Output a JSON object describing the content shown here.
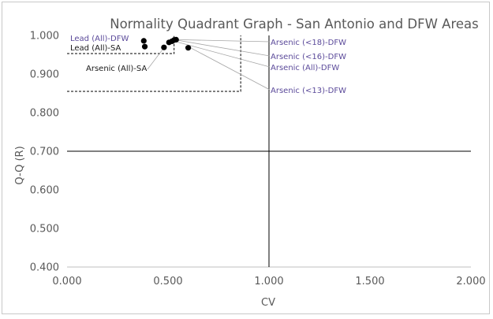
{
  "chart_data": {
    "type": "scatter",
    "title": "Normality Quadrant Graph - San Antonio and DFW Areas",
    "xlabel": "CV",
    "ylabel": "Q-Q (R)",
    "xlim": [
      0.0,
      2.0
    ],
    "ylim": [
      0.4,
      1.0
    ],
    "x_ticks": [
      "0.000",
      "0.500",
      "1.000",
      "1.500",
      "2.000"
    ],
    "y_ticks": [
      "0.400",
      "0.500",
      "0.600",
      "0.700",
      "0.800",
      "0.900",
      "1.000"
    ],
    "reference_lines": {
      "x": 1.0,
      "y": 0.7
    },
    "highlight_box": {
      "x_range": [
        0.0,
        0.86
      ],
      "y_range": [
        0.855,
        1.0
      ],
      "style": "dashed"
    },
    "inner_box": {
      "x_range": [
        0.0,
        0.53
      ],
      "y_range": [
        0.953,
        1.0
      ],
      "style": "dashed"
    },
    "marker_color": "#000000",
    "points": [
      {
        "x": 0.38,
        "y": 0.986
      },
      {
        "x": 0.385,
        "y": 0.971
      },
      {
        "x": 0.48,
        "y": 0.969
      },
      {
        "x": 0.505,
        "y": 0.982
      },
      {
        "x": 0.52,
        "y": 0.985
      },
      {
        "x": 0.53,
        "y": 0.988
      },
      {
        "x": 0.54,
        "y": 0.989
      },
      {
        "x": 0.6,
        "y": 0.968
      }
    ],
    "annotations": [
      {
        "text": "Lead (All)-DFW",
        "color": "#5b4a9a",
        "side": "left",
        "x": 0.38,
        "y": 0.986
      },
      {
        "text": "Lead (All)-SA",
        "color": "#1a1a1a",
        "side": "left",
        "x": 0.385,
        "y": 0.971
      },
      {
        "text": "Arsenic (All)-SA",
        "color": "#1a1a1a",
        "side": "left",
        "x": 0.48,
        "y": 0.969
      },
      {
        "text": "Arsenic (<18)-DFW",
        "color": "#5b4a9a",
        "side": "right",
        "x": 0.54,
        "y": 0.989
      },
      {
        "text": "Arsenic (<16)-DFW",
        "color": "#5b4a9a",
        "side": "right",
        "x": 0.53,
        "y": 0.988
      },
      {
        "text": "Arsenic (All)-DFW",
        "color": "#5b4a9a",
        "side": "right",
        "x": 0.52,
        "y": 0.985
      },
      {
        "text": "Arsenic (<13)-DFW",
        "color": "#5b4a9a",
        "side": "right",
        "x": 0.6,
        "y": 0.968
      }
    ],
    "grid": false,
    "legend": "none"
  }
}
